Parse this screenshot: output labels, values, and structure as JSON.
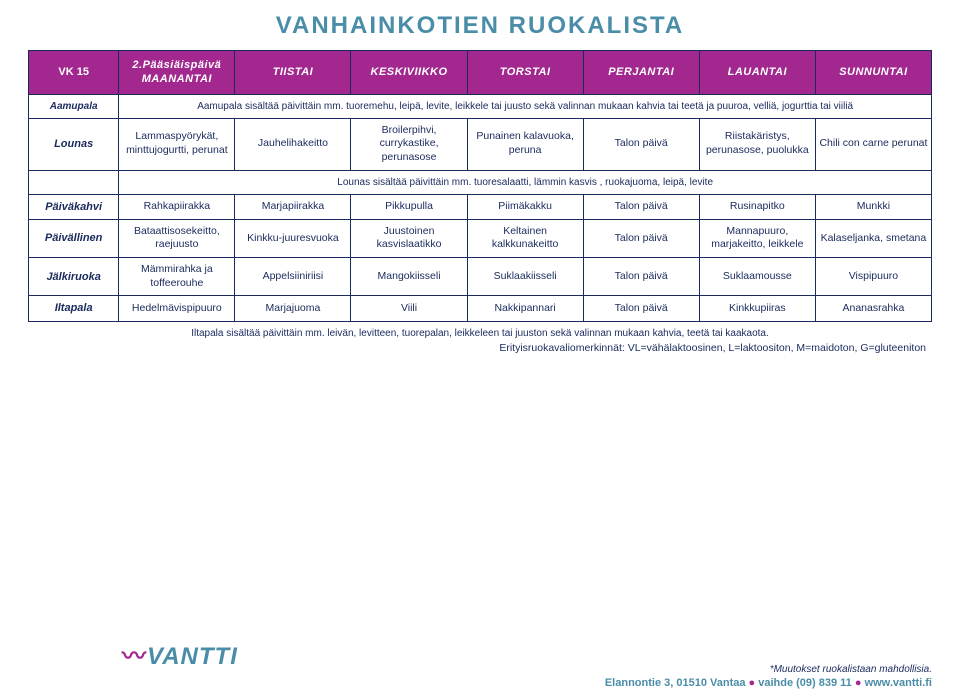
{
  "title": "VANHAINKOTIEN RUOKALISTA",
  "colors": {
    "header_bg": "#a2278f",
    "header_fg": "#ffffff",
    "border": "#1a2a5c",
    "title": "#4a8da8",
    "body_text": "#1a2a5c"
  },
  "header": {
    "week": "VK 15",
    "days": [
      "2.Pääsiäispäivä MAANANTAI",
      "TIISTAI",
      "KESKIVIIKKO",
      "TORSTAI",
      "PERJANTAI",
      "LAUANTAI",
      "SUNNUNTAI"
    ]
  },
  "rows": {
    "aamupala": {
      "label": "Aamupala",
      "note": "Aamupala sisältää päivittäin mm. tuoremehu, leipä, levite, leikkele tai juusto sekä valinnan mukaan kahvia tai teetä ja puuroa, velliä, jogurttia tai viiliä"
    },
    "lounas": {
      "label": "Lounas",
      "cells": [
        "Lammaspyörykät, minttujogurtti, perunat",
        "Jauhelihakeitto",
        "Broilerpihvi, currykastike, perunasose",
        "Punainen kalavuoka, peruna",
        "Talon päivä",
        "Riistakäristys, perunasose, puolukka",
        "Chili con carne perunat"
      ]
    },
    "lounas_note": {
      "note": "Lounas sisältää päivittäin mm. tuoresalaatti, lämmin kasvis , ruokajuoma, leipä, levite"
    },
    "paivakahvi": {
      "label": "Päiväkahvi",
      "cells": [
        "Rahkapiirakka",
        "Marjapiirakka",
        "Pikkupulla",
        "Piimäkakku",
        "Talon päivä",
        "Rusinapitko",
        "Munkki"
      ]
    },
    "paivallinen": {
      "label": "Päivällinen",
      "cells": [
        "Bataattisosekeitto, raejuusto",
        "Kinkku-juuresvuoka",
        "Juustoinen kasvislaatikko",
        "Keltainen kalkkunakeitto",
        "Talon päivä",
        "Mannapuuro, marjakeitto, leikkele",
        "Kalaseljanka, smetana"
      ]
    },
    "jalkiruoka": {
      "label": "Jälkiruoka",
      "cells": [
        "Mämmirahka ja toffeerouhe",
        "Appelsiiniriisi",
        "Mangokiisseli",
        "Suklaakiisseli",
        "Talon päivä",
        "Suklaamousse",
        "Vispipuuro"
      ]
    },
    "iltapala": {
      "label": "Iltapala",
      "cells": [
        "Hedelmävispipuuro",
        "Marjajuoma",
        "Viili",
        "Nakkipannari",
        "Talon päivä",
        "Kinkkupiiras",
        "Ananasrahka"
      ]
    }
  },
  "footer": {
    "iltapala_note": "Iltapala sisältää päivittäin mm. leivän, levitteen, tuorepalan, leikkeleen tai juuston sekä valinnan mukaan kahvia, teetä tai kaakaota.",
    "diet": "Erityisruokavaliomerkinnät: VL=vähälaktoosinen, L=laktoositon, M=maidoton, G=gluteeniton",
    "disclaimer": "*Muutokset ruokalistaan mahdollisia.",
    "contact_addr": "Elannontie 3, 01510 Vantaa",
    "contact_tel": "vaihde (09) 839 11",
    "contact_web": "www.vantti.fi"
  },
  "logo": "VANTTI"
}
